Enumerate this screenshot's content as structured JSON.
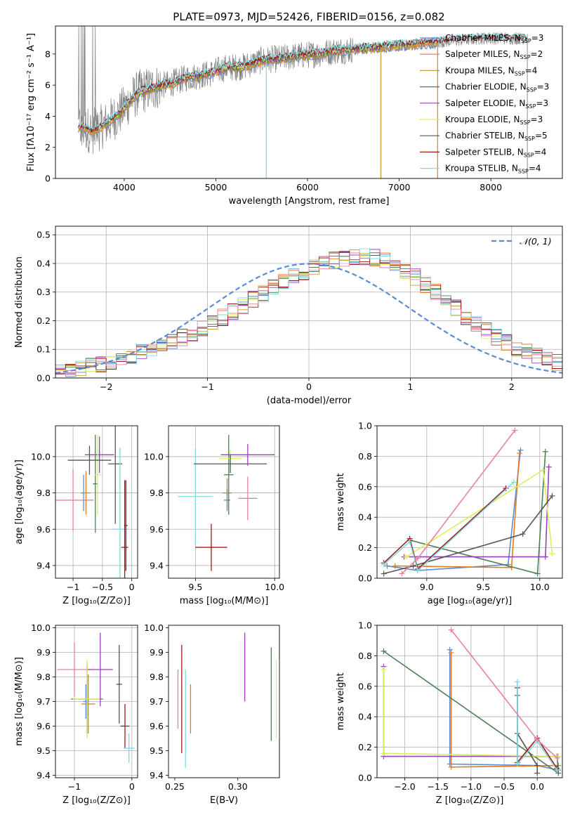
{
  "figure_title": "PLATE=0973, MJD=52426, FIBERID=0156, z=0.082",
  "model_colors": {
    "Chabrier MILES": "#5b8bd8",
    "Salpeter MILES": "#e07b1f",
    "Kroupa MILES": "#bfa23a",
    "Chabrier ELODIE": "#4f7f56",
    "Salpeter ELODIE": "#9a3fbf",
    "Kroupa ELODIE": "#dcee5a",
    "Chabrier STELIB": "#555555",
    "Salpeter STELIB": "#a01818",
    "Kroupa STELIB": "#7fdbe0",
    "pink": "#e8829a",
    "data_gray": "#808080",
    "normal_curve": "#5b8bd8"
  },
  "chart_data": [
    {
      "type": "line",
      "id": "spectrum",
      "xlabel": "wavelength [Angstrom, rest frame]",
      "ylabel": "Flux [fλ10⁻¹⁷ erg cm⁻² s⁻¹ A⁻¹]",
      "xlim": [
        3250,
        8780
      ],
      "ylim": [
        0,
        9.8
      ],
      "xticks": [
        4000,
        5000,
        6000,
        7000,
        8000
      ],
      "yticks": [
        0,
        2,
        4,
        6,
        8
      ],
      "legend_position": "upper right",
      "legend": [
        {
          "label": "Chabrier MILES, N",
          "sub": "SSP",
          "tail": "=3",
          "key": "Chabrier MILES"
        },
        {
          "label": "Salpeter MILES, N",
          "sub": "SSP",
          "tail": "=2",
          "key": "Salpeter MILES"
        },
        {
          "label": "Kroupa MILES, N",
          "sub": "SSP",
          "tail": "=4",
          "key": "Kroupa MILES"
        },
        {
          "label": "Chabrier ELODIE, N",
          "sub": "SSP",
          "tail": "=3",
          "key": "Chabrier ELODIE"
        },
        {
          "label": "Salpeter ELODIE, N",
          "sub": "SSP",
          "tail": "=3",
          "key": "Salpeter ELODIE"
        },
        {
          "label": "Kroupa ELODIE, N",
          "sub": "SSP",
          "tail": "=3",
          "key": "Kroupa ELODIE"
        },
        {
          "label": "Chabrier STELIB, N",
          "sub": "SSP",
          "tail": "=5",
          "key": "Chabrier STELIB"
        },
        {
          "label": "Salpeter STELIB, N",
          "sub": "SSP",
          "tail": "=4",
          "key": "Salpeter STELIB"
        },
        {
          "label": "Kroupa STELIB, N",
          "sub": "SSP",
          "tail": "=4",
          "key": "Kroupa STELIB"
        }
      ],
      "continuum": {
        "x": [
          3550,
          3650,
          3750,
          3850,
          3950,
          4050,
          4150,
          4300,
          4500,
          4700,
          4900,
          5100,
          5300,
          5500,
          5700,
          5900,
          6100,
          6300,
          6500,
          6700,
          6900,
          7100,
          7300,
          7500,
          7700,
          7900,
          8100,
          8300,
          8400
        ],
        "y": [
          3.3,
          3.0,
          3.3,
          3.7,
          4.2,
          4.9,
          5.5,
          5.8,
          6.1,
          6.5,
          6.7,
          7.1,
          7.2,
          7.6,
          7.7,
          7.9,
          8.0,
          8.2,
          8.3,
          8.4,
          8.5,
          8.6,
          8.7,
          8.8,
          8.9,
          9.0,
          9.0,
          9.0,
          9.0
        ]
      },
      "model_spans": [
        {
          "key": "Chabrier MILES",
          "x": [
            3500,
            7420
          ]
        },
        {
          "key": "Salpeter MILES",
          "x": [
            3500,
            7420
          ]
        },
        {
          "key": "Kroupa MILES",
          "x": [
            3500,
            7420
          ]
        },
        {
          "key": "Chabrier ELODIE",
          "x": [
            3900,
            6800
          ]
        },
        {
          "key": "Salpeter ELODIE",
          "x": [
            3900,
            6800
          ]
        },
        {
          "key": "Kroupa ELODIE",
          "x": [
            3900,
            6800
          ]
        },
        {
          "key": "Chabrier STELIB",
          "x": [
            3500,
            8400
          ]
        },
        {
          "key": "Salpeter STELIB",
          "x": [
            3500,
            8400
          ]
        },
        {
          "key": "Kroupa STELIB",
          "x": [
            3500,
            8400
          ]
        }
      ]
    },
    {
      "type": "step",
      "id": "residuals",
      "xlabel": "(data-model)/error",
      "ylabel": "Normed distribution",
      "xlim": [
        -2.5,
        2.5
      ],
      "ylim": [
        0,
        0.53
      ],
      "xticks": [
        -2,
        -1,
        0,
        1,
        2
      ],
      "xtick_labels": [
        "−2",
        "−1",
        "0",
        "1",
        "2"
      ],
      "yticks": [
        0.0,
        0.1,
        0.2,
        0.3,
        0.4,
        0.5
      ],
      "ytick_labels": [
        "0.0",
        "0.1",
        "0.2",
        "0.3",
        "0.4",
        "0.5"
      ],
      "grid": true,
      "legend": [
        {
          "label": "𝒩(0, 1)",
          "style": "dashed"
        }
      ],
      "bin_width": 0.1,
      "bin_start": -2.5,
      "histogram_base": [
        0.025,
        0.028,
        0.035,
        0.042,
        0.05,
        0.058,
        0.067,
        0.077,
        0.088,
        0.1,
        0.113,
        0.127,
        0.142,
        0.158,
        0.175,
        0.193,
        0.212,
        0.232,
        0.252,
        0.273,
        0.294,
        0.315,
        0.335,
        0.355,
        0.372,
        0.387,
        0.4,
        0.41,
        0.418,
        0.423,
        0.425,
        0.42,
        0.41,
        0.395,
        0.375,
        0.352,
        0.326,
        0.298,
        0.27,
        0.243,
        0.215,
        0.19,
        0.166,
        0.144,
        0.124,
        0.106,
        0.09,
        0.076,
        0.064,
        0.054
      ]
    },
    {
      "type": "errorbar",
      "id": "z-age",
      "xlabel": "Z [log₁₀(Z/Z⊙)]",
      "ylabel": "age  [log₁₀(age/yr)]",
      "xlim": [
        -1.3,
        0.1
      ],
      "ylim": [
        9.33,
        10.17
      ],
      "xticks": [
        -1,
        -0.5,
        0
      ],
      "xtick_labels": [
        "−1",
        "−0.5",
        "0"
      ],
      "yticks": [
        9.4,
        9.6,
        9.8,
        10.0
      ],
      "ytick_labels": [
        "9.4",
        "9.6",
        "9.8",
        "10.0"
      ],
      "grid": true,
      "points": [
        {
          "key": "pink",
          "x": -1.0,
          "xerr": 0.35,
          "y": 9.76,
          "yerr": 0.17
        },
        {
          "key": "Chabrier MILES",
          "x": -0.82,
          "xerr": 0.05,
          "y": 9.8,
          "yerr": 0.1
        },
        {
          "key": "Salpeter MILES",
          "x": -0.78,
          "xerr": 0.08,
          "y": 9.8,
          "yerr": 0.12
        },
        {
          "key": "Chabrier ELODIE",
          "x": -0.62,
          "xerr": 0.04,
          "y": 9.85,
          "yerr": 0.27
        },
        {
          "key": "Salpeter ELODIE",
          "x": -0.55,
          "xerr": 0.25,
          "y": 10.01,
          "yerr": 0.1
        },
        {
          "key": "Kroupa ELODIE",
          "x": -0.58,
          "xerr": 0.06,
          "y": 9.9,
          "yerr": 0.22
        },
        {
          "key": "Chabrier STELIB",
          "x": -0.72,
          "xerr": 0.37,
          "y": 9.98,
          "yerr": 0.08
        },
        {
          "key": "Chabrier STELIB",
          "x": -0.28,
          "xerr": 0.12,
          "y": 9.96,
          "yerr": 0.33
        },
        {
          "key": "Kroupa STELIB",
          "x": -0.2,
          "xerr": 0.15,
          "y": 9.6,
          "yerr": 0.45
        },
        {
          "key": "Salpeter STELIB",
          "x": -0.12,
          "xerr": 0.06,
          "y": 9.5,
          "yerr": 0.37
        },
        {
          "key": "Salpeter STELIB",
          "x": -0.1,
          "xerr": 0.03,
          "y": 9.62,
          "yerr": 0.25
        }
      ]
    },
    {
      "type": "errorbar",
      "id": "mass-age",
      "xlabel": "mass [log₁₀(M/M⊙)]",
      "ylabel": "",
      "xlim": [
        9.33,
        10.03
      ],
      "ylim": [
        9.33,
        10.17
      ],
      "xticks": [
        9.5,
        10.0
      ],
      "xtick_labels": [
        "9.5",
        "10.0"
      ],
      "yticks": [
        9.4,
        9.6,
        9.8,
        10.0
      ],
      "ytick_labels": [
        "9.4",
        "9.6",
        "9.8",
        "10.0"
      ],
      "grid": true,
      "points": [
        {
          "key": "Kroupa STELIB",
          "x": 9.5,
          "xerr": 0.11,
          "y": 9.78,
          "yerr": 0.27
        },
        {
          "key": "Salpeter STELIB",
          "x": 9.6,
          "xerr": 0.1,
          "y": 9.5,
          "yerr": 0.13
        },
        {
          "key": "Salpeter MILES",
          "x": 9.7,
          "xerr": 0.03,
          "y": 9.8,
          "yerr": 0.08
        },
        {
          "key": "Chabrier MILES",
          "x": 9.7,
          "xerr": 0.02,
          "y": 9.76,
          "yerr": 0.06
        },
        {
          "key": "Chabrier ELODIE",
          "x": 9.71,
          "xerr": 0.03,
          "y": 9.9,
          "yerr": 0.22
        },
        {
          "key": "Kroupa ELODIE",
          "x": 9.72,
          "xerr": 0.07,
          "y": 9.99,
          "yerr": 0.05
        },
        {
          "key": "Chabrier STELIB",
          "x": 9.72,
          "xerr": 0.23,
          "y": 9.96,
          "yerr": 0.05
        },
        {
          "key": "Salpeter ELODIE",
          "x": 9.83,
          "xerr": 0.17,
          "y": 10.01,
          "yerr": 0.06
        },
        {
          "key": "pink",
          "x": 9.83,
          "xerr": 0.06,
          "y": 9.77,
          "yerr": 0.12
        }
      ]
    },
    {
      "type": "line",
      "id": "age-weight",
      "xlabel": "age  [log₁₀(age/yr)]",
      "ylabel": "mass weight",
      "xlim": [
        8.56,
        10.2
      ],
      "ylim": [
        0,
        1.0
      ],
      "xticks": [
        9.0,
        9.5,
        10.0
      ],
      "xtick_labels": [
        "9.0",
        "9.5",
        "10.0"
      ],
      "yticks": [
        0.0,
        0.2,
        0.4,
        0.6,
        0.8,
        1.0
      ],
      "ytick_labels": [
        "0.0",
        "0.2",
        "0.4",
        "0.6",
        "0.8",
        "1.0"
      ],
      "grid": true,
      "series": [
        {
          "key": "Chabrier MILES",
          "x": [
            8.65,
            8.92,
            9.72,
            9.83
          ],
          "y": [
            0.08,
            0.05,
            0.09,
            0.84
          ]
        },
        {
          "key": "Salpeter MILES",
          "x": [
            8.72,
            9.75,
            9.82
          ],
          "y": [
            0.08,
            0.07,
            0.82
          ]
        },
        {
          "key": "Chabrier ELODIE",
          "x": [
            8.85,
            9.98,
            10.05
          ],
          "y": [
            0.25,
            0.03,
            0.83
          ]
        },
        {
          "key": "Salpeter ELODIE",
          "x": [
            8.8,
            10.05,
            10.08
          ],
          "y": [
            0.14,
            0.14,
            0.73
          ]
        },
        {
          "key": "Kroupa ELODIE",
          "x": [
            8.82,
            10.03,
            10.11
          ],
          "y": [
            0.14,
            0.71,
            0.16
          ]
        },
        {
          "key": "Chabrier STELIB",
          "x": [
            8.62,
            8.88,
            9.85,
            10.11
          ],
          "y": [
            0.03,
            0.08,
            0.29,
            0.54
          ]
        },
        {
          "key": "Salpeter STELIB",
          "x": [
            8.62,
            8.85,
            8.92,
            9.7
          ],
          "y": [
            0.1,
            0.26,
            0.06,
            0.59
          ]
        },
        {
          "key": "Kroupa STELIB",
          "x": [
            8.62,
            8.85,
            8.92,
            9.77
          ],
          "y": [
            0.09,
            0.24,
            0.05,
            0.63
          ]
        },
        {
          "key": "pink",
          "x": [
            8.78,
            8.92,
            9.78
          ],
          "y": [
            0.03,
            0.13,
            0.97
          ]
        }
      ]
    },
    {
      "type": "errorbar",
      "id": "z-mass",
      "xlabel": "Z [log₁₀(Z/Z⊙)]",
      "ylabel": "mass [log₁₀(M/M⊙)]",
      "xlim": [
        -1.33,
        0.1
      ],
      "ylim": [
        9.39,
        10.01
      ],
      "xticks": [
        -1,
        0
      ],
      "xtick_labels": [
        "−1",
        "0"
      ],
      "yticks": [
        9.4,
        9.5,
        9.6,
        9.7,
        9.8,
        9.9,
        10.0
      ],
      "ytick_labels": [
        "9.4",
        "9.5",
        "9.6",
        "9.7",
        "9.8",
        "9.9",
        "10.0"
      ],
      "grid": true,
      "points": [
        {
          "key": "pink",
          "x": -1.0,
          "xerr": 0.3,
          "y": 9.83,
          "yerr": 0.11
        },
        {
          "key": "Chabrier MILES",
          "x": -0.8,
          "xerr": 0.05,
          "y": 9.7,
          "yerr": 0.07
        },
        {
          "key": "Salpeter MILES",
          "x": -0.76,
          "xerr": 0.12,
          "y": 9.69,
          "yerr": 0.12
        },
        {
          "key": "Chabrier ELODIE",
          "x": -0.78,
          "xerr": 0.28,
          "y": 9.71,
          "yerr": 0.14
        },
        {
          "key": "Kroupa ELODIE",
          "x": -0.78,
          "xerr": 0.24,
          "y": 9.71,
          "yerr": 0.16
        },
        {
          "key": "Salpeter ELODIE",
          "x": -0.55,
          "xerr": 0.22,
          "y": 9.83,
          "yerr": 0.15
        },
        {
          "key": "Chabrier STELIB",
          "x": -0.22,
          "xerr": 0.05,
          "y": 9.77,
          "yerr": 0.16
        },
        {
          "key": "Salpeter STELIB",
          "x": -0.12,
          "xerr": 0.08,
          "y": 9.6,
          "yerr": 0.09
        },
        {
          "key": "Kroupa STELIB",
          "x": -0.05,
          "xerr": 0.1,
          "y": 9.51,
          "yerr": 0.06
        }
      ]
    },
    {
      "type": "errorbar",
      "id": "ebv-mass",
      "xlabel": "E(B-V)",
      "ylabel": "",
      "xlim": [
        0.245,
        0.333
      ],
      "ylim": [
        9.39,
        10.01
      ],
      "xticks": [
        0.25,
        0.3
      ],
      "xtick_labels": [
        "0.25",
        "0.30"
      ],
      "yticks": [
        9.4,
        9.5,
        9.6,
        9.7,
        9.8,
        9.9,
        10.0
      ],
      "ytick_labels": [
        "9.4",
        "9.5",
        "9.6",
        "9.7",
        "9.8",
        "9.9",
        "10.0"
      ],
      "grid": false,
      "points": [
        {
          "key": "pink",
          "x": 0.2525,
          "y": 9.71,
          "yerr": 0.12
        },
        {
          "key": "Salpeter STELIB",
          "x": 0.2555,
          "y": 9.71,
          "yerr": 0.22
        },
        {
          "key": "Kroupa STELIB",
          "x": 0.2585,
          "y": 9.63,
          "yerr": 0.2
        },
        {
          "key": "Salpeter MILES",
          "x": 0.2625,
          "y": 9.67,
          "yerr": 0.1
        },
        {
          "key": "Salpeter ELODIE",
          "x": 0.3055,
          "y": 9.84,
          "yerr": 0.14
        },
        {
          "key": "Chabrier ELODIE",
          "x": 0.3265,
          "y": 9.73,
          "yerr": 0.19
        },
        {
          "key": "Kroupa ELODIE",
          "x": 0.3305,
          "y": 9.71,
          "yerr": 0.16
        }
      ]
    },
    {
      "type": "line",
      "id": "z-weight",
      "xlabel": "Z [log₁₀(Z/Z⊙)]",
      "ylabel": "mass weight",
      "xlim": [
        -2.42,
        0.38
      ],
      "ylim": [
        0,
        1.0
      ],
      "xticks": [
        -2.0,
        -1.5,
        -1.0,
        -0.5,
        0.0
      ],
      "xtick_labels": [
        "−2.0",
        "−1.5",
        "−1.0",
        "−0.5",
        "0.0"
      ],
      "yticks": [
        0.0,
        0.2,
        0.4,
        0.6,
        0.8,
        1.0
      ],
      "ytick_labels": [
        "0.0",
        "0.2",
        "0.4",
        "0.6",
        "0.8",
        "1.0"
      ],
      "grid": true,
      "series": [
        {
          "key": "Chabrier MILES",
          "x": [
            -1.32,
            -1.32,
            0.0,
            0.32
          ],
          "y": [
            0.84,
            0.09,
            0.08,
            0.05
          ]
        },
        {
          "key": "Salpeter MILES",
          "x": [
            -1.3,
            -1.3,
            0.32
          ],
          "y": [
            0.82,
            0.07,
            0.08
          ]
        },
        {
          "key": "Chabrier ELODIE",
          "x": [
            -2.32,
            0.32,
            0.3
          ],
          "y": [
            0.83,
            0.03,
            0.14
          ]
        },
        {
          "key": "Salpeter ELODIE",
          "x": [
            -2.32,
            -2.32,
            0.32
          ],
          "y": [
            0.73,
            0.14,
            0.14
          ]
        },
        {
          "key": "Kroupa ELODIE",
          "x": [
            -2.32,
            -2.32,
            0.32
          ],
          "y": [
            0.71,
            0.16,
            0.14
          ]
        },
        {
          "key": "Chabrier STELIB",
          "x": [
            -0.3,
            -0.3,
            0.0,
            0.0
          ],
          "y": [
            0.54,
            0.29,
            0.08,
            0.03
          ]
        },
        {
          "key": "Salpeter STELIB",
          "x": [
            -0.3,
            -0.3,
            0.0,
            0.3
          ],
          "y": [
            0.59,
            0.1,
            0.26,
            0.06
          ]
        },
        {
          "key": "Kroupa STELIB",
          "x": [
            -0.3,
            -0.3,
            0.0,
            0.3
          ],
          "y": [
            0.63,
            0.09,
            0.24,
            0.05
          ]
        },
        {
          "key": "pink",
          "x": [
            -1.3,
            0.0,
            0.3
          ],
          "y": [
            0.97,
            0.25,
            0.13
          ]
        }
      ]
    }
  ]
}
